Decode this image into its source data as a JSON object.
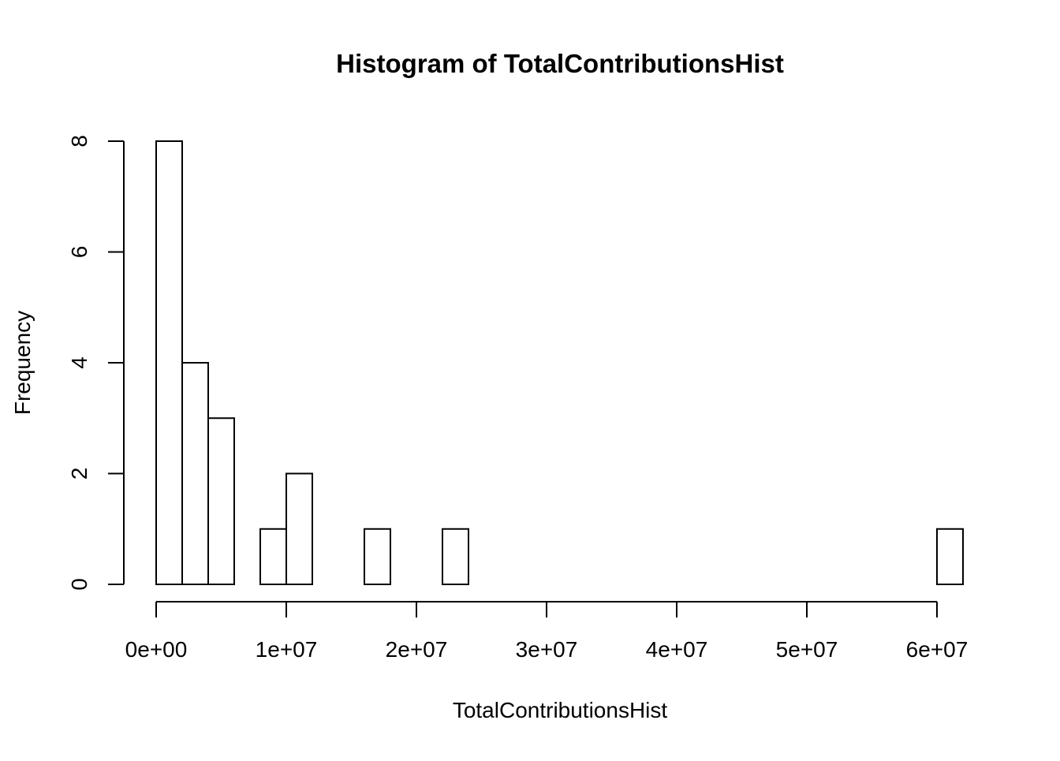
{
  "chart_data": {
    "type": "bar",
    "title": "Histogram of TotalContributionsHist",
    "xlabel": "TotalContributionsHist",
    "ylabel": "Frequency",
    "bin_edges": [
      0,
      2000000,
      4000000,
      6000000,
      8000000,
      10000000,
      12000000,
      14000000,
      16000000,
      18000000,
      20000000,
      22000000,
      24000000,
      26000000,
      28000000,
      30000000,
      32000000,
      34000000,
      36000000,
      38000000,
      40000000,
      42000000,
      44000000,
      46000000,
      48000000,
      50000000,
      52000000,
      54000000,
      56000000,
      58000000,
      60000000,
      62000000
    ],
    "values": [
      8,
      4,
      3,
      0,
      1,
      2,
      0,
      0,
      1,
      0,
      0,
      1,
      0,
      0,
      0,
      0,
      0,
      0,
      0,
      0,
      0,
      0,
      0,
      0,
      0,
      0,
      0,
      0,
      0,
      0,
      1
    ],
    "xticks": [
      0,
      10000000,
      20000000,
      30000000,
      40000000,
      50000000,
      60000000
    ],
    "xtick_labels": [
      "0e+00",
      "1e+07",
      "2e+07",
      "3e+07",
      "4e+07",
      "5e+07",
      "6e+07"
    ],
    "yticks": [
      0,
      2,
      4,
      6,
      8
    ],
    "ytick_labels": [
      "0",
      "2",
      "4",
      "6",
      "8"
    ],
    "xlim": [
      0,
      62000000
    ],
    "ylim": [
      0,
      8
    ],
    "grid": false
  }
}
